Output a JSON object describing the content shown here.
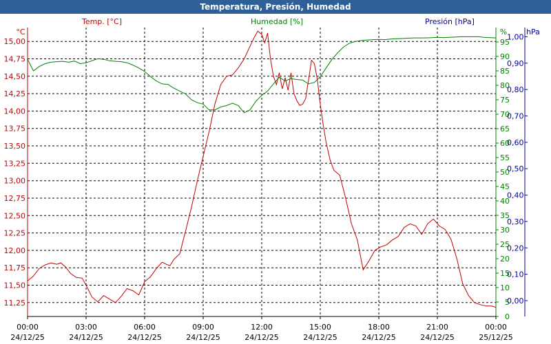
{
  "title": "Temperatura, Presión, Humedad",
  "chart_data": {
    "type": "line",
    "title": "Temperatura, Presión, Humedad",
    "grid": true,
    "colors": {
      "temperature": "#c00000",
      "humidity": "#008000",
      "pressure": "#000099",
      "grid": "#000000",
      "titlebar": "#2e5f97"
    },
    "axes": {
      "temperature": {
        "unit_label": "°C",
        "legend": "Temp. [°C]",
        "ticks": [
          "15,00",
          "14,75",
          "14,50",
          "14,25",
          "14,00",
          "13,75",
          "13,50",
          "13,25",
          "13,00",
          "12,75",
          "12,50",
          "12,25",
          "12,00",
          "11,75",
          "11,50",
          "11,25"
        ],
        "range": [
          11.05,
          15.2
        ]
      },
      "humidity": {
        "unit_label": "%",
        "legend": "Humedad [%]",
        "ticks": [
          "95",
          "90",
          "85",
          "80",
          "75",
          "70",
          "65",
          "60",
          "55",
          "50",
          "45",
          "40",
          "35",
          "30",
          "25",
          "20",
          "15",
          "10",
          "5",
          "0"
        ],
        "range": [
          0,
          100
        ]
      },
      "pressure": {
        "unit_label": "hPa",
        "legend": "Presión [hPa]",
        "ticks": [
          "1,00",
          "0,90",
          "0,80",
          "0,70",
          "0,60",
          "0,50",
          "0,40",
          "0,30",
          "0,20",
          "0,10",
          "0,00"
        ],
        "range": [
          -0.06,
          1.035
        ]
      },
      "x": {
        "range": [
          0,
          24
        ],
        "ticks": [
          {
            "time": "00:00",
            "date": "24/12/25"
          },
          {
            "time": "03:00",
            "date": "24/12/25"
          },
          {
            "time": "06:00",
            "date": "24/12/25"
          },
          {
            "time": "09:00",
            "date": "24/12/25"
          },
          {
            "time": "12:00",
            "date": "24/12/25"
          },
          {
            "time": "15:00",
            "date": "24/12/25"
          },
          {
            "time": "18:00",
            "date": "24/12/25"
          },
          {
            "time": "21:00",
            "date": "24/12/25"
          },
          {
            "time": "00:00",
            "date": "25/12/25"
          }
        ]
      }
    },
    "series": [
      {
        "key": "temperature",
        "x": [
          0,
          0.3,
          0.6,
          0.9,
          1.2,
          1.5,
          1.7,
          1.95,
          2.2,
          2.5,
          2.8,
          3,
          3.3,
          3.6,
          3.9,
          4.2,
          4.5,
          4.8,
          5.1,
          5.4,
          5.7,
          6,
          6.3,
          6.6,
          6.9,
          7.1,
          7.3,
          7.5,
          7.8,
          8.1,
          8.4,
          8.7,
          9,
          9.3,
          9.6,
          9.9,
          10.2,
          10.5,
          10.8,
          11.1,
          11.4,
          11.6,
          11.8,
          12,
          12.15,
          12.3,
          12.45,
          12.6,
          12.75,
          12.9,
          13.05,
          13.2,
          13.35,
          13.5,
          13.65,
          13.8,
          13.95,
          14.1,
          14.25,
          14.4,
          14.55,
          14.7,
          14.85,
          15,
          15.15,
          15.3,
          15.5,
          15.7,
          16,
          16.3,
          16.6,
          16.9,
          17.2,
          17.5,
          17.8,
          18.1,
          18.4,
          18.7,
          19,
          19.3,
          19.6,
          19.9,
          20.2,
          20.5,
          20.8,
          21.1,
          21.4,
          21.7,
          22,
          22.3,
          22.6,
          22.9,
          23.2,
          23.5,
          23.8,
          24
        ],
        "y": [
          11.56,
          11.63,
          11.74,
          11.79,
          11.82,
          11.8,
          11.82,
          11.76,
          11.67,
          11.61,
          11.6,
          11.5,
          11.33,
          11.26,
          11.35,
          11.3,
          11.25,
          11.34,
          11.45,
          11.42,
          11.36,
          11.55,
          11.62,
          11.74,
          11.83,
          11.8,
          11.78,
          11.87,
          11.95,
          12.28,
          12.62,
          13.0,
          13.35,
          13.7,
          14.1,
          14.38,
          14.5,
          14.52,
          14.62,
          14.75,
          14.93,
          15.05,
          15.15,
          15.1,
          14.98,
          15.12,
          14.75,
          14.5,
          14.38,
          14.55,
          14.32,
          14.48,
          14.3,
          14.55,
          14.25,
          14.15,
          14.08,
          14.1,
          14.18,
          14.45,
          14.73,
          14.68,
          14.45,
          14.1,
          13.8,
          13.55,
          13.3,
          13.15,
          13.08,
          12.75,
          12.38,
          12.15,
          11.72,
          11.85,
          12.0,
          12.05,
          12.08,
          12.15,
          12.2,
          12.33,
          12.38,
          12.35,
          12.23,
          12.38,
          12.45,
          12.35,
          12.3,
          12.16,
          11.88,
          11.52,
          11.35,
          11.25,
          11.22,
          11.2,
          11.2,
          11.18
        ]
      },
      {
        "key": "humidity",
        "x": [
          0,
          0.3,
          0.6,
          0.9,
          1.2,
          1.5,
          1.8,
          2.1,
          2.4,
          2.7,
          3,
          3.3,
          3.6,
          3.9,
          4.2,
          4.5,
          4.8,
          5.1,
          5.4,
          5.7,
          6,
          6.3,
          6.6,
          6.9,
          7.2,
          7.5,
          7.8,
          8.1,
          8.4,
          8.7,
          9,
          9.3,
          9.6,
          9.9,
          10.2,
          10.5,
          10.8,
          11.1,
          11.4,
          11.7,
          12,
          12.3,
          12.6,
          12.9,
          13.2,
          13.5,
          13.8,
          14.1,
          14.4,
          14.7,
          15,
          15.3,
          15.6,
          15.9,
          16.2,
          16.5,
          16.8,
          17.1,
          17.4,
          17.7,
          18,
          18.3,
          18.6,
          18.9,
          19.2,
          19.5,
          19.8,
          20.1,
          20.4,
          20.7,
          21,
          21.3,
          21.6,
          21.9,
          22.2,
          22.5,
          22.8,
          23.1,
          23.4,
          23.7,
          24
        ],
        "y": [
          89,
          85,
          86.5,
          87.5,
          88,
          88.2,
          88.3,
          88,
          88.4,
          87.5,
          87.8,
          88.5,
          89.2,
          89,
          88.5,
          88.3,
          88.2,
          87.8,
          87,
          86,
          84.8,
          83,
          81.5,
          80.5,
          80.3,
          79,
          78,
          77,
          75,
          74,
          73.5,
          71.5,
          71.5,
          72.5,
          73,
          73.8,
          73,
          70.5,
          71.5,
          74.5,
          76.5,
          78,
          80.5,
          82.8,
          81.5,
          82.3,
          82,
          81.8,
          80.5,
          81,
          83,
          86,
          89,
          91.3,
          93.3,
          94.6,
          95.2,
          95.5,
          95.7,
          95.8,
          95.9,
          95.8,
          96,
          96.1,
          96.2,
          96.3,
          96.4,
          96.4,
          96.4,
          96.5,
          96.6,
          96.5,
          96.6,
          96.7,
          96.8,
          96.8,
          96.8,
          96.8,
          96.6,
          96.5,
          96.4
        ]
      }
    ]
  }
}
